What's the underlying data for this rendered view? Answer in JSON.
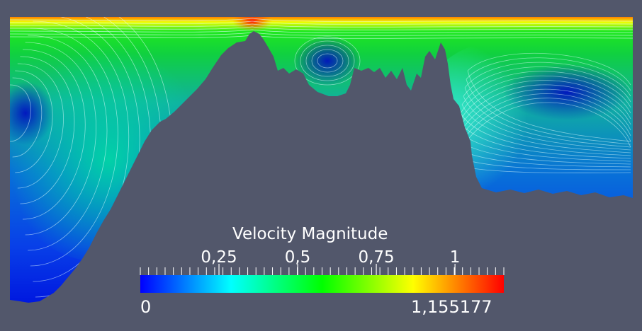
{
  "scalar_bar": {
    "title": "Velocity Magnitude",
    "tick_labels": [
      "0,25",
      "0,5",
      "0,75",
      "1"
    ],
    "range_min": "0",
    "range_max": "1,155177",
    "range_min_value": 0,
    "range_max_value": 1.155177,
    "tick_values": [
      0.25,
      0.5,
      0.75,
      1.0
    ],
    "colormap": [
      "#0000ff",
      "#00ffff",
      "#00ff00",
      "#ffff00",
      "#ff0000"
    ]
  },
  "colors": {
    "background": "#52576b",
    "streamline": "#e6ffff"
  }
}
